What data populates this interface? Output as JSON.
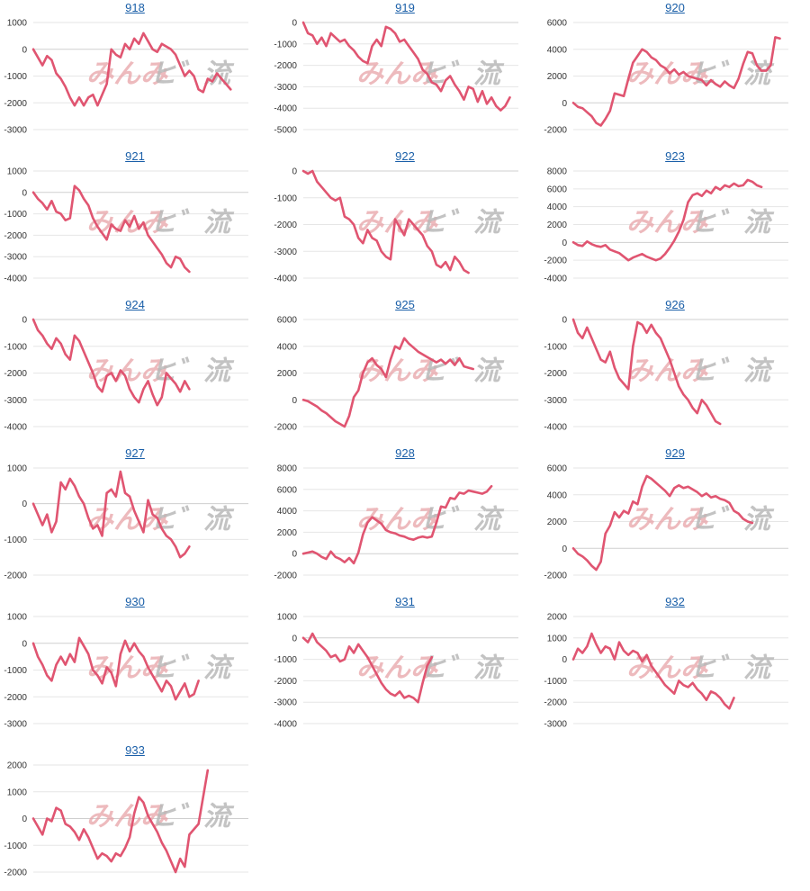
{
  "colors": {
    "line": "#e05571",
    "title": "#1a5fa8",
    "grid": "#e6e6e6",
    "zero_line": "#cfcfcf"
  },
  "watermark": {
    "left": "みんみ",
    "right": "ヒ゛流"
  },
  "chart_data": [
    {
      "type": "line",
      "title": "918",
      "ylim": [
        -3000,
        1000
      ],
      "yticks": [
        1000,
        0,
        -1000,
        -2000,
        -3000
      ],
      "values": [
        0,
        -300,
        -600,
        -250,
        -400,
        -900,
        -1100,
        -1400,
        -1800,
        -2100,
        -1800,
        -2100,
        -1800,
        -1700,
        -2100,
        -1700,
        -1300,
        0,
        -200,
        -300,
        200,
        0,
        400,
        200,
        600,
        300,
        0,
        -100,
        200,
        100,
        0,
        -200,
        -600,
        -1000,
        -800,
        -1000,
        -1500,
        -1600,
        -1100,
        -1200,
        -900,
        -1100,
        -1300,
        -1500
      ]
    },
    {
      "type": "line",
      "title": "919",
      "ylim": [
        -5000,
        0
      ],
      "yticks": [
        0,
        -1000,
        -2000,
        -3000,
        -4000,
        -5000
      ],
      "values": [
        0,
        -500,
        -600,
        -1000,
        -700,
        -1100,
        -500,
        -700,
        -900,
        -800,
        -1100,
        -1300,
        -1600,
        -1800,
        -1900,
        -1100,
        -800,
        -1100,
        -200,
        -300,
        -500,
        -900,
        -800,
        -1100,
        -1400,
        -1700,
        -2200,
        -2400,
        -2800,
        -2900,
        -3200,
        -2700,
        -2500,
        -2900,
        -3200,
        -3600,
        -3000,
        -3100,
        -3700,
        -3200,
        -3800,
        -3500,
        -3900,
        -4100,
        -3900,
        -3500
      ]
    },
    {
      "type": "line",
      "title": "920",
      "ylim": [
        -2000,
        6000
      ],
      "yticks": [
        6000,
        4000,
        2000,
        0,
        -2000
      ],
      "values": [
        0,
        -300,
        -400,
        -700,
        -1000,
        -1500,
        -1700,
        -1200,
        -600,
        700,
        600,
        500,
        1800,
        3000,
        3500,
        4000,
        3800,
        3400,
        3200,
        2800,
        2600,
        2200,
        2500,
        2100,
        2300,
        2000,
        1900,
        1800,
        1700,
        1300,
        1700,
        1400,
        1200,
        1600,
        1300,
        1100,
        1800,
        2900,
        3800,
        3700,
        2800,
        2400,
        2400,
        2800,
        4900,
        4800
      ]
    },
    {
      "type": "line",
      "title": "921",
      "ylim": [
        -4000,
        1000
      ],
      "yticks": [
        1000,
        0,
        -1000,
        -2000,
        -3000,
        -4000
      ],
      "values": [
        0,
        -300,
        -500,
        -800,
        -400,
        -900,
        -1000,
        -1300,
        -1200,
        300,
        100,
        -300,
        -600,
        -1200,
        -1600,
        -1900,
        -2200,
        -1500,
        -1700,
        -1800,
        -1300,
        -1600,
        -1100,
        -1700,
        -1400,
        -2000,
        -2300,
        -2600,
        -2900,
        -3300,
        -3500,
        -3000,
        -3100,
        -3500,
        -3700
      ]
    },
    {
      "type": "line",
      "title": "922",
      "ylim": [
        -4000,
        0
      ],
      "yticks": [
        0,
        -1000,
        -2000,
        -3000,
        -4000
      ],
      "values": [
        0,
        -100,
        0,
        -400,
        -600,
        -800,
        -1000,
        -1100,
        -1000,
        -1700,
        -1800,
        -2000,
        -2500,
        -2700,
        -2200,
        -2500,
        -2600,
        -3000,
        -3200,
        -3300,
        -1800,
        -2100,
        -2400,
        -1800,
        -2000,
        -2200,
        -2400,
        -2800,
        -3000,
        -3500,
        -3600,
        -3400,
        -3700,
        -3200,
        -3400,
        -3700,
        -3800
      ]
    },
    {
      "type": "line",
      "title": "923",
      "ylim": [
        -4000,
        8000
      ],
      "yticks": [
        8000,
        6000,
        4000,
        2000,
        0,
        -2000,
        -4000
      ],
      "values": [
        0,
        -300,
        -400,
        100,
        -200,
        -400,
        -500,
        -300,
        -800,
        -1000,
        -1200,
        -1600,
        -2000,
        -1700,
        -1500,
        -1300,
        -1600,
        -1800,
        -2000,
        -1800,
        -1300,
        -600,
        200,
        1200,
        2500,
        4500,
        5300,
        5500,
        5200,
        5800,
        5500,
        6200,
        5900,
        6400,
        6200,
        6600,
        6300,
        6400,
        7000,
        6800,
        6400,
        6200
      ]
    },
    {
      "type": "line",
      "title": "924",
      "ylim": [
        -4000,
        0
      ],
      "yticks": [
        0,
        -1000,
        -2000,
        -3000,
        -4000
      ],
      "values": [
        0,
        -400,
        -600,
        -900,
        -1100,
        -700,
        -900,
        -1300,
        -1500,
        -600,
        -800,
        -1200,
        -1600,
        -2000,
        -2500,
        -2700,
        -2100,
        -2000,
        -2300,
        -1900,
        -2100,
        -2600,
        -2900,
        -3100,
        -2600,
        -2300,
        -2800,
        -3200,
        -2900,
        -2000,
        -2200,
        -2400,
        -2700,
        -2300,
        -2600
      ]
    },
    {
      "type": "line",
      "title": "925",
      "ylim": [
        -2000,
        6000
      ],
      "yticks": [
        6000,
        4000,
        2000,
        0,
        -2000
      ],
      "values": [
        0,
        -100,
        -300,
        -500,
        -800,
        -1000,
        -1300,
        -1600,
        -1800,
        -2000,
        -1200,
        200,
        700,
        2000,
        2800,
        3100,
        2600,
        2300,
        1700,
        3000,
        4000,
        3800,
        4600,
        4200,
        3900,
        3600,
        3400,
        3200,
        3000,
        2800,
        3000,
        2700,
        3000,
        2600,
        3100,
        2500,
        2400,
        2300
      ]
    },
    {
      "type": "line",
      "title": "926",
      "ylim": [
        -4000,
        0
      ],
      "yticks": [
        0,
        -1000,
        -2000,
        -3000,
        -4000
      ],
      "values": [
        0,
        -500,
        -700,
        -300,
        -700,
        -1100,
        -1500,
        -1600,
        -1200,
        -1800,
        -2200,
        -2400,
        -2600,
        -1000,
        -100,
        -200,
        -500,
        -200,
        -500,
        -700,
        -1100,
        -1500,
        -2000,
        -2500,
        -2800,
        -3000,
        -3300,
        -3500,
        -3000,
        -3200,
        -3500,
        -3800,
        -3900
      ]
    },
    {
      "type": "line",
      "title": "927",
      "ylim": [
        -2000,
        1000
      ],
      "yticks": [
        1000,
        0,
        -1000,
        -2000
      ],
      "values": [
        0,
        -300,
        -600,
        -300,
        -800,
        -500,
        600,
        400,
        700,
        500,
        200,
        0,
        -400,
        -700,
        -600,
        -900,
        300,
        400,
        200,
        900,
        300,
        200,
        -200,
        -500,
        -800,
        100,
        -300,
        -400,
        -700,
        -900,
        -1000,
        -1200,
        -1500,
        -1400,
        -1200
      ]
    },
    {
      "type": "line",
      "title": "928",
      "ylim": [
        -2000,
        8000
      ],
      "yticks": [
        8000,
        6000,
        4000,
        2000,
        0,
        -2000
      ],
      "values": [
        0,
        100,
        200,
        0,
        -300,
        -500,
        200,
        -300,
        -500,
        -800,
        -400,
        -900,
        100,
        1800,
        2900,
        3400,
        3100,
        2800,
        2200,
        2000,
        1900,
        1700,
        1600,
        1400,
        1300,
        1500,
        1600,
        1500,
        1600,
        2900,
        4400,
        4300,
        5200,
        5100,
        5700,
        5600,
        5900,
        5800,
        5700,
        5600,
        5800,
        6300
      ]
    },
    {
      "type": "line",
      "title": "929",
      "ylim": [
        -2000,
        6000
      ],
      "yticks": [
        6000,
        4000,
        2000,
        0,
        -2000
      ],
      "values": [
        0,
        -400,
        -600,
        -900,
        -1300,
        -1600,
        -1000,
        1100,
        1700,
        2700,
        2300,
        2800,
        2600,
        3500,
        3300,
        4600,
        5400,
        5200,
        4900,
        4600,
        4300,
        3900,
        4500,
        4700,
        4500,
        4600,
        4400,
        4200,
        3900,
        4100,
        3800,
        3900,
        3700,
        3600,
        3400,
        2800,
        2600,
        2200,
        2000,
        1900
      ]
    },
    {
      "type": "line",
      "title": "930",
      "ylim": [
        -3000,
        1000
      ],
      "yticks": [
        1000,
        0,
        -1000,
        -2000,
        -3000
      ],
      "values": [
        0,
        -500,
        -800,
        -1200,
        -1400,
        -800,
        -500,
        -800,
        -400,
        -700,
        200,
        -100,
        -400,
        -1000,
        -1200,
        -1500,
        -900,
        -1100,
        -1600,
        -400,
        100,
        -300,
        0,
        -300,
        -500,
        -900,
        -1200,
        -1500,
        -1800,
        -1400,
        -1600,
        -2100,
        -1800,
        -1500,
        -2000,
        -1900,
        -1400
      ]
    },
    {
      "type": "line",
      "title": "931",
      "ylim": [
        -4000,
        1000
      ],
      "yticks": [
        1000,
        0,
        -1000,
        -2000,
        -3000,
        -4000
      ],
      "values": [
        0,
        -200,
        200,
        -200,
        -400,
        -600,
        -900,
        -800,
        -1100,
        -1000,
        -400,
        -700,
        -300,
        -600,
        -900,
        -1300,
        -1700,
        -2100,
        -2400,
        -2600,
        -2700,
        -2500,
        -2800,
        -2700,
        -2800,
        -3000,
        -2100,
        -1300,
        -900
      ]
    },
    {
      "type": "line",
      "title": "932",
      "ylim": [
        -3000,
        2000
      ],
      "yticks": [
        2000,
        1000,
        0,
        -1000,
        -2000,
        -3000
      ],
      "values": [
        0,
        500,
        300,
        600,
        1200,
        700,
        300,
        600,
        500,
        0,
        800,
        400,
        200,
        400,
        300,
        -100,
        200,
        -300,
        -600,
        -900,
        -1200,
        -1400,
        -1600,
        -1000,
        -1200,
        -1300,
        -1100,
        -1400,
        -1600,
        -1900,
        -1500,
        -1600,
        -1800,
        -2100,
        -2300,
        -1800
      ]
    },
    {
      "type": "line",
      "title": "933",
      "ylim": [
        -2000,
        2000
      ],
      "yticks": [
        2000,
        1000,
        0,
        -1000,
        -2000
      ],
      "values": [
        0,
        -300,
        -600,
        0,
        -100,
        400,
        300,
        -200,
        -300,
        -500,
        -800,
        -400,
        -700,
        -1100,
        -1500,
        -1300,
        -1400,
        -1600,
        -1300,
        -1400,
        -1100,
        -700,
        200,
        800,
        600,
        100,
        -200,
        -500,
        -900,
        -1200,
        -1600,
        -2000,
        -1500,
        -1800,
        -600,
        -400,
        -200,
        800,
        1800
      ]
    }
  ]
}
